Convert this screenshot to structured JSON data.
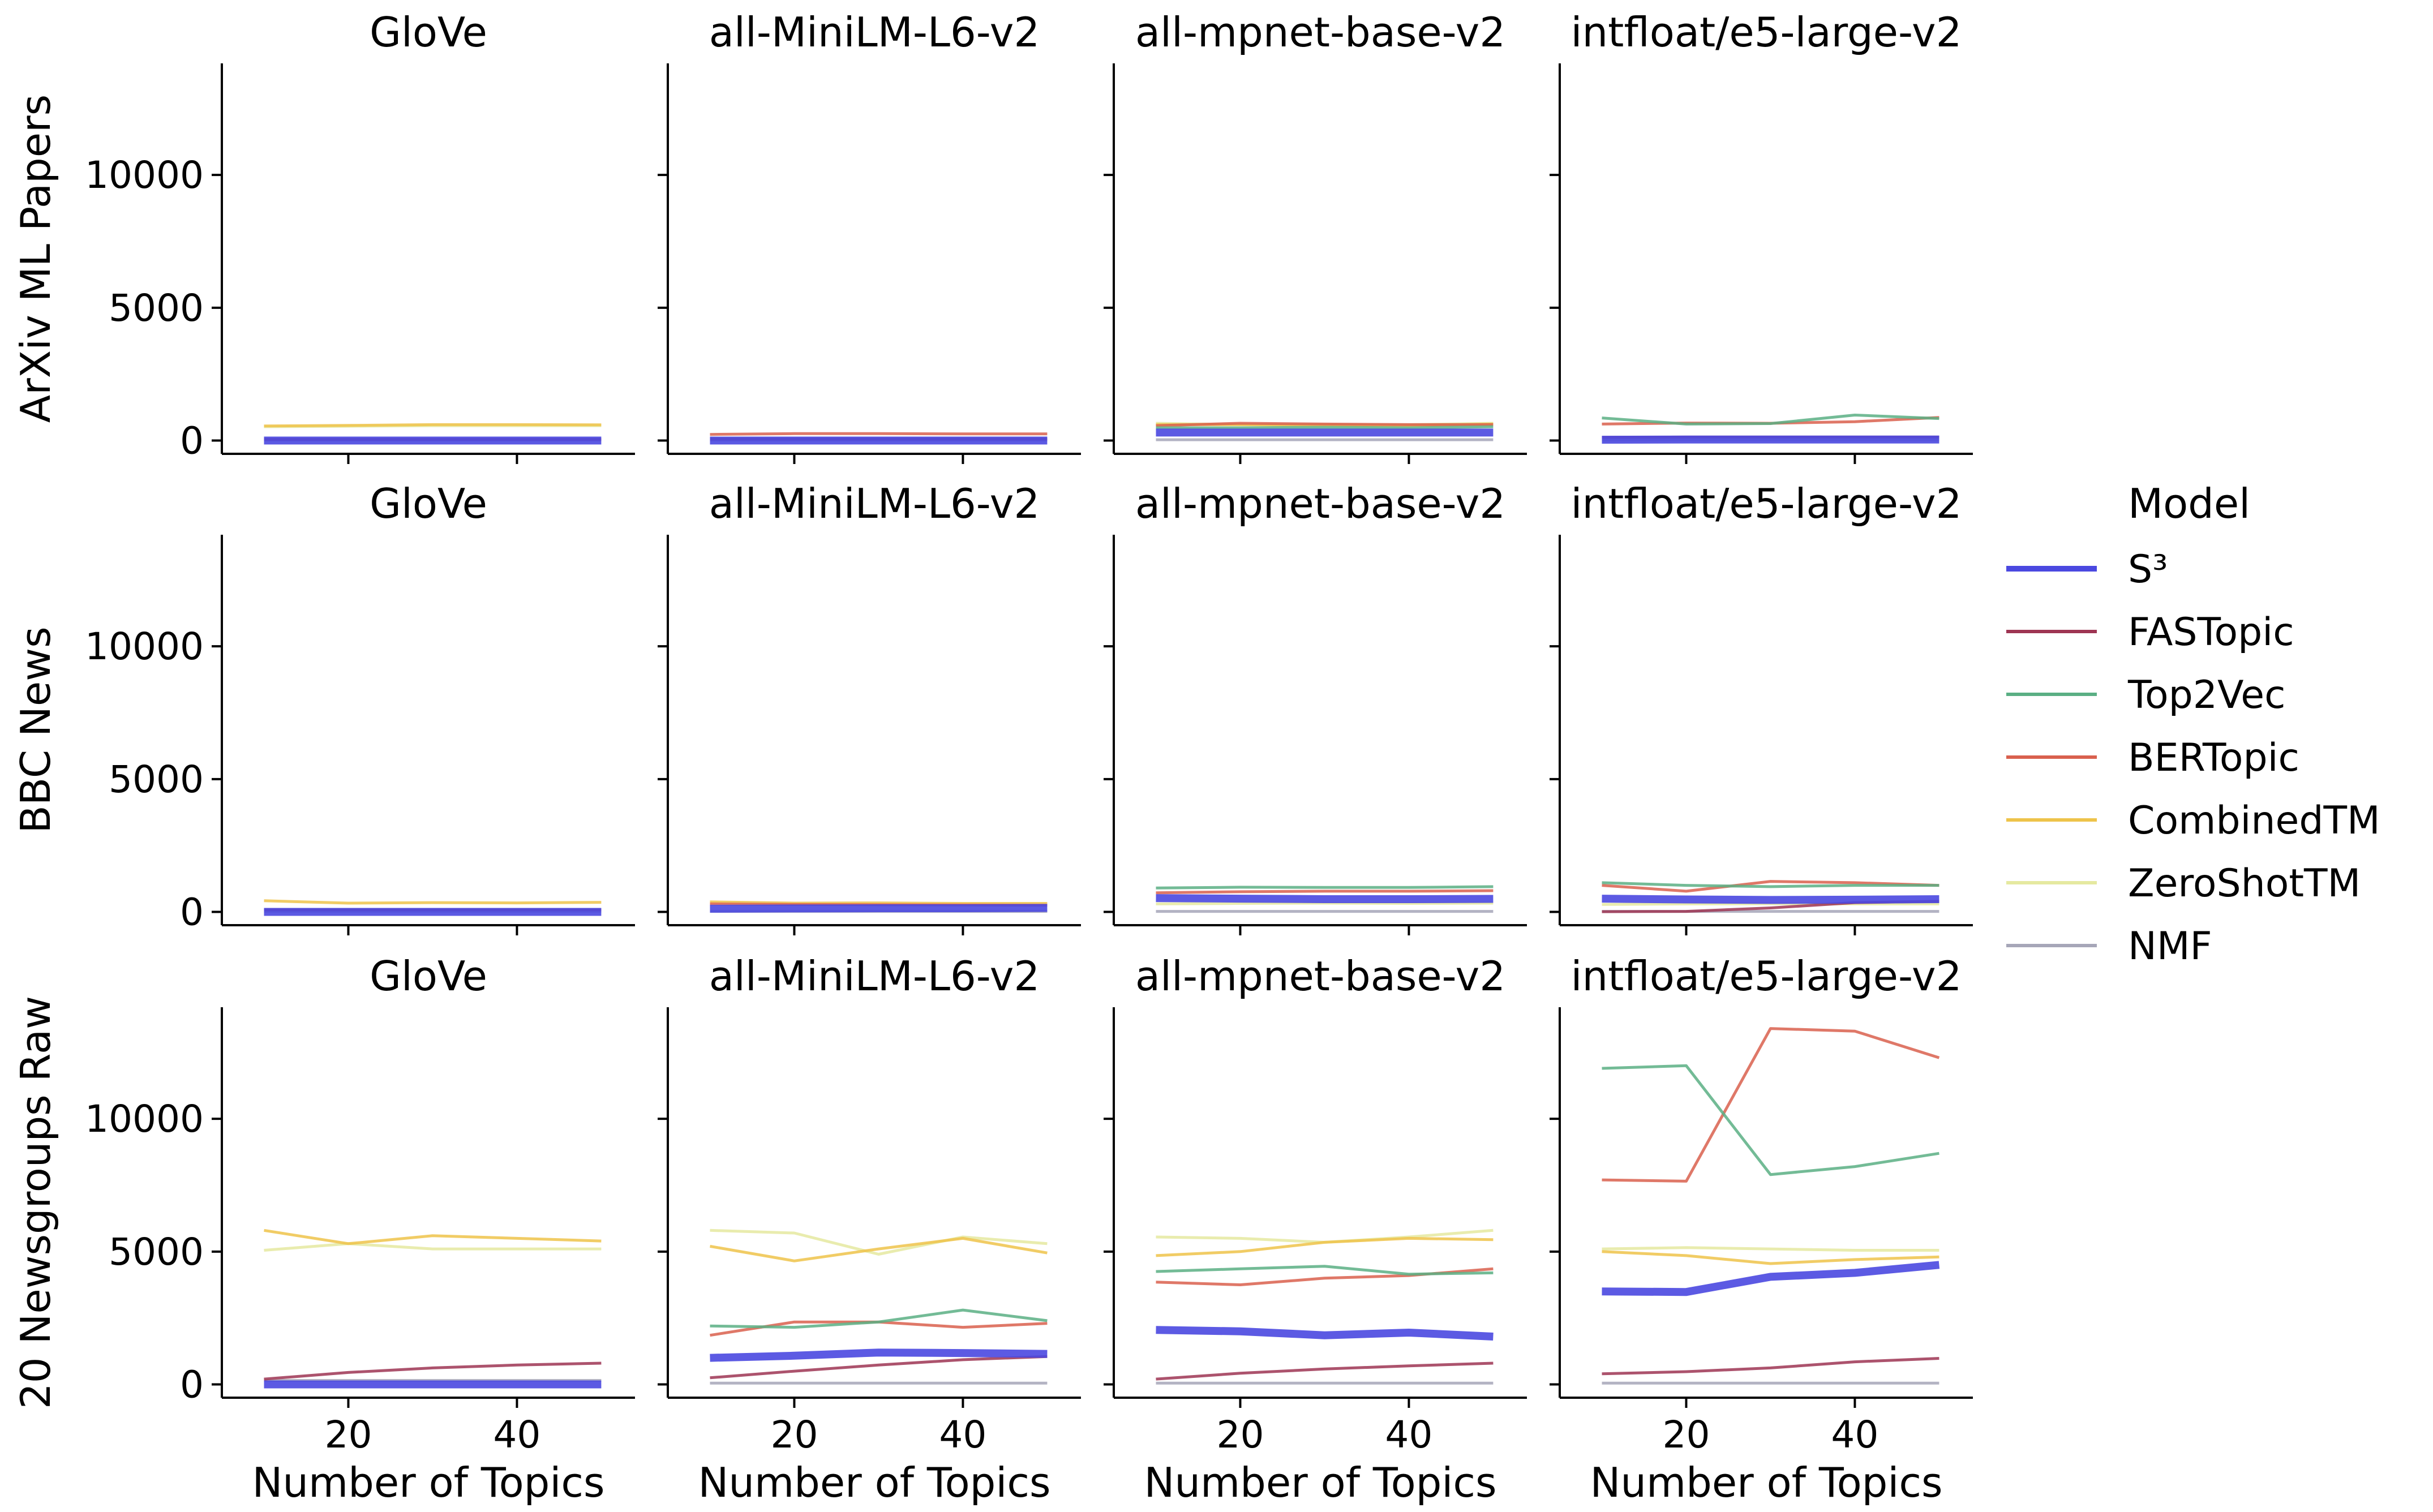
{
  "chart_data": {
    "type": "line",
    "x": [
      10,
      20,
      30,
      40,
      50
    ],
    "xlabel": "Number of Topics",
    "ylim": [
      -500,
      14200
    ],
    "xlim": [
      5,
      54
    ],
    "x_ticks": [
      20,
      40
    ],
    "y_ticks": [
      0,
      5000,
      10000
    ],
    "row_labels": [
      "ArXiv ML Papers",
      "BBC News",
      "20 Newsgroups Raw"
    ],
    "column_titles": [
      "GloVe",
      "all-MiniLM-L6-v2",
      "all-mpnet-base-v2",
      "intfloat/e5-large-v2"
    ],
    "legend": {
      "title": "Model",
      "placement": "right",
      "entries": [
        {
          "name": "S³",
          "color": "#4a48e0",
          "width": 14
        },
        {
          "name": "FASTopic",
          "color": "#9e3553",
          "width": 5
        },
        {
          "name": "Top2Vec",
          "color": "#5aaf84",
          "width": 5
        },
        {
          "name": "BERTopic",
          "color": "#d9604e",
          "width": 5
        },
        {
          "name": "CombinedTM",
          "color": "#eec34a",
          "width": 5
        },
        {
          "name": "ZeroShotTM",
          "color": "#e5e9a0",
          "width": 5
        },
        {
          "name": "NMF",
          "color": "#a6a6b8",
          "width": 5
        }
      ]
    },
    "panels": [
      [
        {
          "S³": [
            0,
            0,
            0,
            0,
            0
          ],
          "FASTopic": [
            50,
            50,
            50,
            50,
            50
          ],
          "Top2Vec": [
            null,
            null,
            null,
            null,
            null
          ],
          "BERTopic": [
            null,
            null,
            null,
            null,
            null
          ],
          "CombinedTM": [
            550,
            570,
            600,
            600,
            590
          ],
          "ZeroShotTM": [
            520,
            540,
            560,
            560,
            560
          ],
          "NMF": [
            20,
            20,
            20,
            20,
            20
          ]
        },
        {
          "S³": [
            0,
            0,
            0,
            0,
            0
          ],
          "FASTopic": [
            60,
            60,
            60,
            60,
            60
          ],
          "Top2Vec": [
            null,
            null,
            null,
            null,
            null
          ],
          "BERTopic": [
            230,
            260,
            260,
            250,
            250
          ],
          "CombinedTM": [
            null,
            null,
            null,
            null,
            null
          ],
          "ZeroShotTM": [
            null,
            null,
            null,
            null,
            null
          ],
          "NMF": [
            20,
            20,
            20,
            20,
            20
          ]
        },
        {
          "S³": [
            300,
            300,
            300,
            300,
            300
          ],
          "FASTopic": [
            null,
            null,
            null,
            null,
            null
          ],
          "Top2Vec": [
            480,
            480,
            500,
            480,
            520
          ],
          "BERTopic": [
            560,
            650,
            620,
            600,
            600
          ],
          "CombinedTM": [
            600,
            600,
            580,
            560,
            620
          ],
          "ZeroShotTM": [
            650,
            600,
            600,
            600,
            650
          ],
          "NMF": [
            30,
            30,
            30,
            30,
            30
          ]
        },
        {
          "S³": [
            30,
            40,
            40,
            40,
            40
          ],
          "FASTopic": [
            120,
            130,
            130,
            130,
            130
          ],
          "Top2Vec": [
            850,
            620,
            640,
            960,
            830
          ],
          "BERTopic": [
            620,
            660,
            650,
            710,
            870
          ],
          "CombinedTM": [
            null,
            null,
            null,
            null,
            null
          ],
          "ZeroShotTM": [
            null,
            null,
            null,
            null,
            null
          ],
          "NMF": [
            20,
            20,
            20,
            20,
            20
          ]
        }
      ],
      [
        {
          "S³": [
            0,
            0,
            0,
            0,
            0
          ],
          "FASTopic": [
            80,
            80,
            80,
            80,
            80
          ],
          "Top2Vec": [
            null,
            null,
            null,
            null,
            null
          ],
          "BERTopic": [
            null,
            null,
            null,
            null,
            null
          ],
          "CombinedTM": [
            420,
            330,
            350,
            340,
            360
          ],
          "ZeroShotTM": [
            null,
            null,
            null,
            null,
            null
          ],
          "NMF": [
            20,
            20,
            20,
            20,
            20
          ]
        },
        {
          "S³": [
            120,
            130,
            140,
            140,
            150
          ],
          "FASTopic": [
            null,
            null,
            null,
            null,
            null
          ],
          "Top2Vec": [
            null,
            null,
            null,
            null,
            null
          ],
          "BERTopic": [
            300,
            280,
            270,
            260,
            250
          ],
          "CombinedTM": [
            380,
            330,
            340,
            320,
            320
          ],
          "ZeroShotTM": [
            null,
            null,
            null,
            null,
            null
          ],
          "NMF": [
            20,
            20,
            20,
            20,
            20
          ]
        },
        {
          "S³": [
            520,
            500,
            480,
            480,
            490
          ],
          "FASTopic": [
            null,
            null,
            null,
            null,
            null
          ],
          "Top2Vec": [
            900,
            930,
            920,
            920,
            950
          ],
          "BERTopic": [
            720,
            760,
            780,
            780,
            800
          ],
          "CombinedTM": [
            null,
            null,
            null,
            null,
            null
          ],
          "ZeroShotTM": [
            300,
            320,
            330,
            320,
            330
          ],
          "NMF": [
            20,
            20,
            20,
            20,
            20
          ]
        },
        {
          "S³": [
            500,
            470,
            450,
            460,
            480
          ],
          "FASTopic": [
            10,
            20,
            150,
            350,
            400
          ],
          "Top2Vec": [
            1100,
            1000,
            950,
            1000,
            1000
          ],
          "BERTopic": [
            1000,
            780,
            1150,
            1100,
            1000
          ],
          "CombinedTM": [
            null,
            null,
            null,
            null,
            null
          ],
          "ZeroShotTM": [
            280,
            300,
            310,
            300,
            300
          ],
          "NMF": [
            20,
            20,
            20,
            20,
            20
          ]
        }
      ],
      [
        {
          "S³": [
            0,
            0,
            0,
            0,
            0
          ],
          "FASTopic": [
            200,
            450,
            620,
            730,
            800
          ],
          "Top2Vec": [
            null,
            null,
            null,
            null,
            null
          ],
          "BERTopic": [
            null,
            null,
            null,
            null,
            null
          ],
          "CombinedTM": [
            5800,
            5300,
            5600,
            5500,
            5400
          ],
          "ZeroShotTM": [
            5050,
            5300,
            5100,
            5100,
            5100
          ],
          "NMF": [
            150,
            150,
            150,
            150,
            150
          ]
        },
        {
          "S³": [
            1000,
            1080,
            1200,
            1180,
            1150
          ],
          "FASTopic": [
            250,
            500,
            730,
            930,
            1050
          ],
          "Top2Vec": [
            2200,
            2150,
            2350,
            2800,
            2400
          ],
          "BERTopic": [
            1850,
            2350,
            2350,
            2150,
            2300
          ],
          "CombinedTM": [
            5200,
            4650,
            5100,
            5500,
            4950
          ],
          "ZeroShotTM": [
            5800,
            5700,
            4900,
            5550,
            5300
          ],
          "NMF": [
            50,
            50,
            50,
            50,
            50
          ]
        },
        {
          "S³": [
            2050,
            2000,
            1850,
            1950,
            1800
          ],
          "FASTopic": [
            200,
            420,
            580,
            700,
            800
          ],
          "Top2Vec": [
            4250,
            4350,
            4450,
            4150,
            4200
          ],
          "BERTopic": [
            3850,
            3750,
            4000,
            4100,
            4350
          ],
          "CombinedTM": [
            4850,
            5000,
            5350,
            5500,
            5450
          ],
          "ZeroShotTM": [
            5550,
            5500,
            5350,
            5550,
            5800
          ],
          "NMF": [
            50,
            50,
            50,
            50,
            50
          ]
        },
        {
          "S³": [
            3500,
            3480,
            4050,
            4200,
            4500
          ],
          "FASTopic": [
            400,
            480,
            620,
            850,
            980
          ],
          "Top2Vec": [
            11900,
            12000,
            7900,
            8200,
            8700
          ],
          "BERTopic": [
            7700,
            7650,
            13400,
            13300,
            12300
          ],
          "CombinedTM": [
            5000,
            4850,
            4550,
            4700,
            4800
          ],
          "ZeroShotTM": [
            5100,
            5150,
            5100,
            5050,
            5050
          ],
          "NMF": [
            50,
            50,
            50,
            50,
            50
          ]
        }
      ]
    ]
  }
}
